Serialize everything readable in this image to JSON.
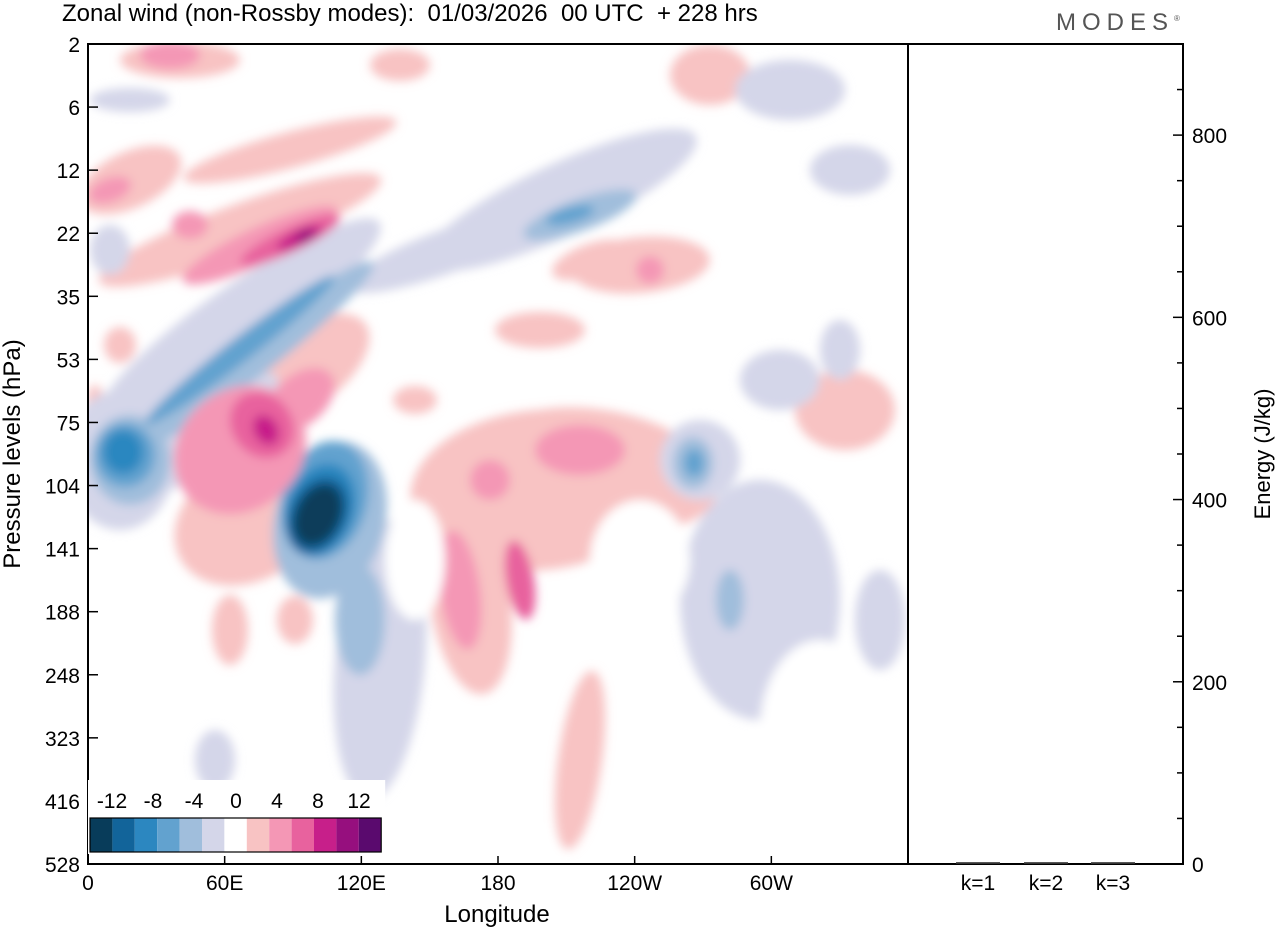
{
  "title": "Zonal wind (non-Rossby modes):  01/03/2026  00 UTC  + 228 hrs",
  "logo": "MODES",
  "chart_data": [
    {
      "type": "contourf",
      "name": "zonal-wind-hovmoller",
      "xlabel": "Longitude",
      "ylabel": "Pressure levels (hPa)",
      "x_ticks": [
        "0",
        "60E",
        "120E",
        "180",
        "120W",
        "60W"
      ],
      "x_tick_degrees": [
        0,
        60,
        120,
        180,
        240,
        300
      ],
      "xlim": [
        0,
        360
      ],
      "y_ticks": [
        "2",
        "6",
        "12",
        "22",
        "35",
        "53",
        "75",
        "104",
        "141",
        "188",
        "248",
        "323",
        "416",
        "528"
      ],
      "colorbar": {
        "labels": [
          "-12",
          "-8",
          "-4",
          "0",
          "4",
          "8",
          "12"
        ],
        "levels": [
          -14,
          -12,
          -10,
          -8,
          -6,
          -4,
          -2,
          2,
          4,
          6,
          8,
          10,
          12,
          14
        ],
        "colors": [
          "#083c5a",
          "#12649a",
          "#2c87c0",
          "#62a2cf",
          "#a0bedc",
          "#d4d6e9",
          "#ffffff",
          "#f8c3c3",
          "#f497b5",
          "#e8629e",
          "#c71f8a",
          "#960f7e",
          "#5a0a6e"
        ]
      },
      "features": [
        {
          "value": -14,
          "lon": 100,
          "level": "120"
        },
        {
          "value": -12,
          "lon": 18,
          "level": "90"
        },
        {
          "value": 12,
          "lon": 92,
          "level": "22"
        },
        {
          "value": 10,
          "lon": 74,
          "level": "75"
        },
        {
          "value": -6,
          "lon": 258,
          "level": "95"
        },
        {
          "value": -6,
          "lon": 210,
          "level": "18"
        }
      ]
    },
    {
      "type": "bar",
      "name": "energy-by-wavenumber",
      "categories": [
        "k=1",
        "k=2",
        "k=3"
      ],
      "values": [
        2,
        2,
        2
      ],
      "ylabel": "Energy (J/kg)",
      "y_ticks": [
        "0",
        "200",
        "400",
        "600",
        "800"
      ],
      "ylim": [
        0,
        900
      ]
    }
  ]
}
